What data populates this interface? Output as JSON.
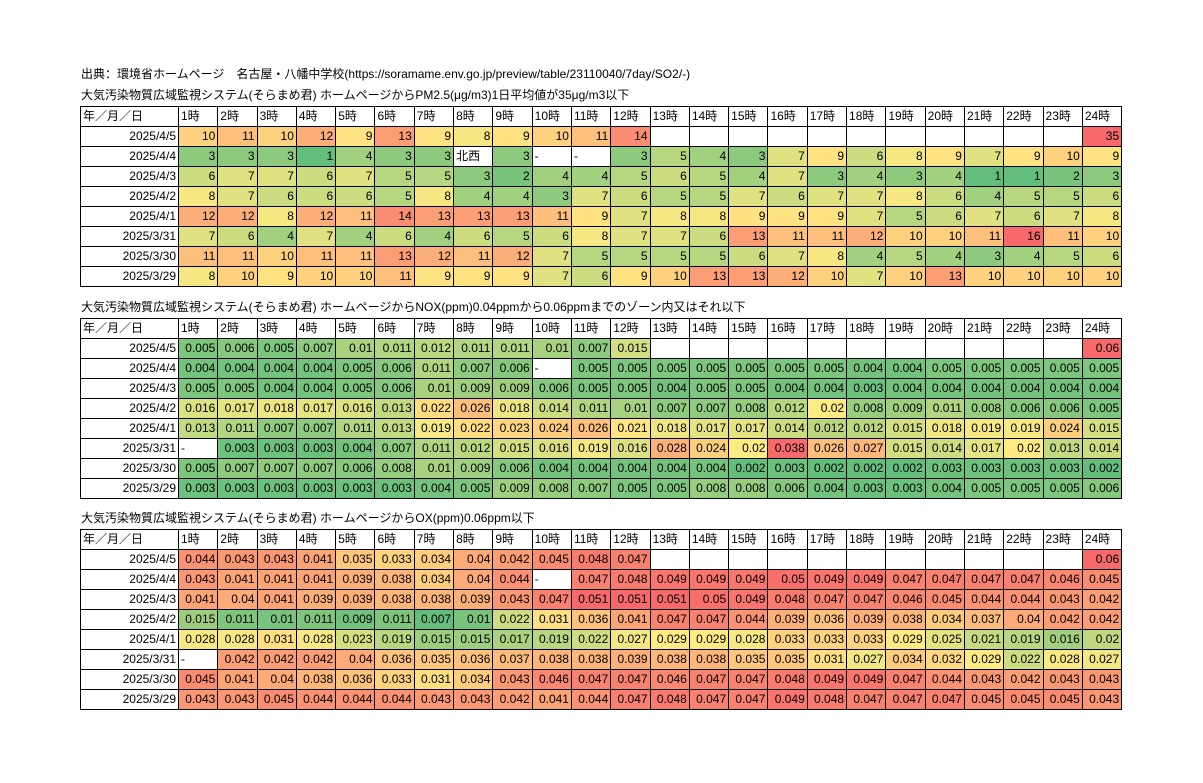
{
  "source_line": "出典：環境省ホームページ　名古屋・八幡中学校(https://soramame.env.go.jp/preview/table/23110040/7day/SO2/-)",
  "hours": [
    "1時",
    "2時",
    "3時",
    "4時",
    "5時",
    "6時",
    "7時",
    "8時",
    "9時",
    "10時",
    "11時",
    "12時",
    "13時",
    "14時",
    "15時",
    "16時",
    "17時",
    "18時",
    "19時",
    "20時",
    "21時",
    "22時",
    "23時",
    "24時"
  ],
  "corner_label": "年／月／日",
  "colors": {
    "good": "#63be7b",
    "mid": "#ffeb84",
    "bad": "#f8696b",
    "limit_cell": "#f8696b"
  },
  "tables": [
    {
      "title": "大気汚染物質広域監視システム(そらまめ君) ホームページからPM2.5(μg/m3)1日平均値が35μg/m3以下",
      "limit": "35",
      "rows": [
        {
          "date": "2025/4/5",
          "values": [
            "10",
            "11",
            "10",
            "12",
            "9",
            "13",
            "9",
            "8",
            "9",
            "10",
            "11",
            "14",
            "",
            "",
            "",
            "",
            "",
            "",
            "",
            "",
            "",
            "",
            "",
            "35"
          ]
        },
        {
          "date": "2025/4/4",
          "values": [
            "3",
            "3",
            "3",
            "1",
            "4",
            "3",
            "3",
            "北西",
            "3",
            "-",
            "-",
            "3",
            "5",
            "4",
            "3",
            "7",
            "9",
            "6",
            "8",
            "9",
            "7",
            "9",
            "10",
            "9"
          ]
        },
        {
          "date": "2025/4/3",
          "values": [
            "6",
            "7",
            "7",
            "6",
            "7",
            "5",
            "5",
            "3",
            "2",
            "4",
            "4",
            "5",
            "6",
            "5",
            "4",
            "7",
            "3",
            "4",
            "3",
            "4",
            "1",
            "1",
            "2",
            "3"
          ]
        },
        {
          "date": "2025/4/2",
          "values": [
            "8",
            "7",
            "6",
            "6",
            "6",
            "5",
            "8",
            "4",
            "4",
            "3",
            "7",
            "6",
            "5",
            "5",
            "7",
            "6",
            "7",
            "7",
            "8",
            "6",
            "4",
            "5",
            "5",
            "6"
          ]
        },
        {
          "date": "2025/4/1",
          "values": [
            "12",
            "12",
            "8",
            "12",
            "11",
            "14",
            "13",
            "13",
            "13",
            "11",
            "9",
            "7",
            "8",
            "8",
            "9",
            "9",
            "9",
            "7",
            "5",
            "6",
            "7",
            "6",
            "7",
            "8"
          ]
        },
        {
          "date": "2025/3/31",
          "values": [
            "7",
            "6",
            "4",
            "7",
            "4",
            "6",
            "4",
            "6",
            "5",
            "6",
            "8",
            "7",
            "7",
            "6",
            "13",
            "11",
            "11",
            "12",
            "10",
            "10",
            "11",
            "16",
            "11",
            "10"
          ]
        },
        {
          "date": "2025/3/30",
          "values": [
            "11",
            "11",
            "10",
            "11",
            "11",
            "13",
            "12",
            "11",
            "12",
            "7",
            "5",
            "5",
            "5",
            "5",
            "6",
            "7",
            "8",
            "4",
            "5",
            "4",
            "3",
            "4",
            "5",
            "6"
          ]
        },
        {
          "date": "2025/3/29",
          "values": [
            "8",
            "10",
            "9",
            "10",
            "10",
            "11",
            "9",
            "9",
            "9",
            "7",
            "6",
            "9",
            "10",
            "13",
            "13",
            "12",
            "10",
            "7",
            "10",
            "13",
            "10",
            "10",
            "10",
            "10"
          ]
        }
      ]
    },
    {
      "title": "大気汚染物質広域監視システム(そらまめ君) ホームページからNOX(ppm)0.04ppmから0.06ppmまでのゾーン内又はそれ以下",
      "limit": "0.06",
      "rows": [
        {
          "date": "2025/4/5",
          "values": [
            "0.005",
            "0.006",
            "0.005",
            "0.007",
            "0.01",
            "0.011",
            "0.012",
            "0.011",
            "0.011",
            "0.01",
            "0.007",
            "0.015",
            "",
            "",
            "",
            "",
            "",
            "",
            "",
            "",
            "",
            "",
            "",
            "0.06"
          ]
        },
        {
          "date": "2025/4/4",
          "values": [
            "0.004",
            "0.004",
            "0.004",
            "0.004",
            "0.005",
            "0.006",
            "0.011",
            "0.007",
            "0.006",
            "-",
            "0.005",
            "0.005",
            "0.005",
            "0.005",
            "0.005",
            "0.005",
            "0.005",
            "0.004",
            "0.004",
            "0.005",
            "0.005",
            "0.005",
            "0.005",
            "0.005"
          ]
        },
        {
          "date": "2025/4/3",
          "values": [
            "0.005",
            "0.005",
            "0.004",
            "0.004",
            "0.005",
            "0.006",
            "0.01",
            "0.009",
            "0.009",
            "0.006",
            "0.005",
            "0.005",
            "0.004",
            "0.005",
            "0.005",
            "0.004",
            "0.004",
            "0.003",
            "0.004",
            "0.004",
            "0.004",
            "0.004",
            "0.004",
            "0.004"
          ]
        },
        {
          "date": "2025/4/2",
          "values": [
            "0.016",
            "0.017",
            "0.018",
            "0.017",
            "0.016",
            "0.013",
            "0.022",
            "0.026",
            "0.018",
            "0.014",
            "0.011",
            "0.01",
            "0.007",
            "0.007",
            "0.008",
            "0.012",
            "0.02",
            "0.008",
            "0.009",
            "0.011",
            "0.008",
            "0.006",
            "0.006",
            "0.005"
          ]
        },
        {
          "date": "2025/4/1",
          "values": [
            "0.013",
            "0.011",
            "0.007",
            "0.007",
            "0.011",
            "0.013",
            "0.019",
            "0.022",
            "0.023",
            "0.024",
            "0.026",
            "0.021",
            "0.018",
            "0.017",
            "0.017",
            "0.014",
            "0.012",
            "0.012",
            "0.015",
            "0.018",
            "0.019",
            "0.019",
            "0.024",
            "0.015"
          ]
        },
        {
          "date": "2025/3/31",
          "values": [
            "-",
            "0.003",
            "0.003",
            "0.003",
            "0.004",
            "0.007",
            "0.011",
            "0.012",
            "0.015",
            "0.016",
            "0.019",
            "0.016",
            "0.028",
            "0.024",
            "0.02",
            "0.038",
            "0.026",
            "0.027",
            "0.015",
            "0.014",
            "0.017",
            "0.02",
            "0.013",
            "0.014"
          ]
        },
        {
          "date": "2025/3/30",
          "values": [
            "0.005",
            "0.007",
            "0.007",
            "0.007",
            "0.006",
            "0.008",
            "0.01",
            "0.009",
            "0.006",
            "0.004",
            "0.004",
            "0.004",
            "0.004",
            "0.004",
            "0.002",
            "0.003",
            "0.002",
            "0.002",
            "0.002",
            "0.003",
            "0.003",
            "0.003",
            "0.003",
            "0.002"
          ]
        },
        {
          "date": "2025/3/29",
          "values": [
            "0.003",
            "0.003",
            "0.003",
            "0.003",
            "0.003",
            "0.003",
            "0.004",
            "0.005",
            "0.009",
            "0.008",
            "0.007",
            "0.005",
            "0.005",
            "0.008",
            "0.008",
            "0.006",
            "0.004",
            "0.003",
            "0.003",
            "0.004",
            "0.005",
            "0.005",
            "0.005",
            "0.006"
          ]
        }
      ]
    },
    {
      "title": "大気汚染物質広域監視システム(そらまめ君) ホームページからOX(ppm)0.06ppm以下",
      "limit": "0.06",
      "rows": [
        {
          "date": "2025/4/5",
          "values": [
            "0.044",
            "0.043",
            "0.043",
            "0.041",
            "0.035",
            "0.033",
            "0.034",
            "0.04",
            "0.042",
            "0.045",
            "0.048",
            "0.047",
            "",
            "",
            "",
            "",
            "",
            "",
            "",
            "",
            "",
            "",
            "",
            "0.06"
          ]
        },
        {
          "date": "2025/4/4",
          "values": [
            "0.043",
            "0.041",
            "0.041",
            "0.041",
            "0.039",
            "0.038",
            "0.034",
            "0.04",
            "0.044",
            "-",
            "0.047",
            "0.048",
            "0.049",
            "0.049",
            "0.049",
            "0.05",
            "0.049",
            "0.049",
            "0.047",
            "0.047",
            "0.047",
            "0.047",
            "0.046",
            "0.045"
          ]
        },
        {
          "date": "2025/4/3",
          "values": [
            "0.041",
            "0.04",
            "0.041",
            "0.039",
            "0.039",
            "0.038",
            "0.038",
            "0.039",
            "0.043",
            "0.047",
            "0.051",
            "0.051",
            "0.051",
            "0.05",
            "0.049",
            "0.048",
            "0.047",
            "0.047",
            "0.046",
            "0.045",
            "0.044",
            "0.044",
            "0.043",
            "0.042"
          ]
        },
        {
          "date": "2025/4/2",
          "values": [
            "0.015",
            "0.011",
            "0.01",
            "0.011",
            "0.009",
            "0.011",
            "0.007",
            "0.01",
            "0.022",
            "0.031",
            "0.036",
            "0.041",
            "0.047",
            "0.047",
            "0.044",
            "0.039",
            "0.036",
            "0.039",
            "0.038",
            "0.034",
            "0.037",
            "0.04",
            "0.042",
            "0.042"
          ]
        },
        {
          "date": "2025/4/1",
          "values": [
            "0.028",
            "0.028",
            "0.031",
            "0.028",
            "0.023",
            "0.019",
            "0.015",
            "0.015",
            "0.017",
            "0.019",
            "0.022",
            "0.027",
            "0.029",
            "0.029",
            "0.028",
            "0.033",
            "0.033",
            "0.033",
            "0.029",
            "0.025",
            "0.021",
            "0.019",
            "0.016",
            "0.02"
          ]
        },
        {
          "date": "2025/3/31",
          "values": [
            "-",
            "0.042",
            "0.042",
            "0.042",
            "0.04",
            "0.036",
            "0.035",
            "0.036",
            "0.037",
            "0.038",
            "0.038",
            "0.039",
            "0.038",
            "0.038",
            "0.035",
            "0.035",
            "0.031",
            "0.027",
            "0.034",
            "0.032",
            "0.029",
            "0.022",
            "0.028",
            "0.027"
          ]
        },
        {
          "date": "2025/3/30",
          "values": [
            "0.045",
            "0.041",
            "0.04",
            "0.038",
            "0.036",
            "0.033",
            "0.031",
            "0.034",
            "0.043",
            "0.046",
            "0.047",
            "0.047",
            "0.046",
            "0.047",
            "0.047",
            "0.048",
            "0.049",
            "0.049",
            "0.047",
            "0.044",
            "0.043",
            "0.042",
            "0.043",
            "0.043"
          ]
        },
        {
          "date": "2025/3/29",
          "values": [
            "0.043",
            "0.043",
            "0.045",
            "0.044",
            "0.044",
            "0.044",
            "0.043",
            "0.043",
            "0.042",
            "0.041",
            "0.044",
            "0.047",
            "0.048",
            "0.047",
            "0.047",
            "0.049",
            "0.048",
            "0.047",
            "0.047",
            "0.047",
            "0.045",
            "0.045",
            "0.045",
            "0.043"
          ]
        }
      ]
    }
  ]
}
